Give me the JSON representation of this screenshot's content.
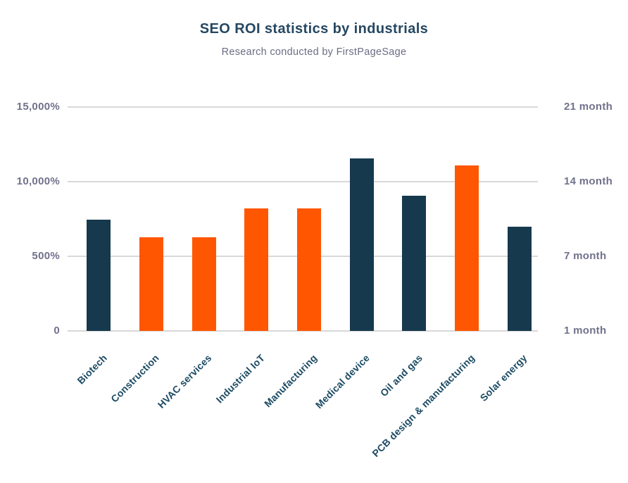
{
  "page": {
    "background": "#FFFFFF"
  },
  "chart": {
    "title": "SEO ROI statistics by industrials",
    "subtitle": "Research conducted by FirstPageSage"
  },
  "colors": {
    "title": "#254761",
    "subtitle": "#6C6C86",
    "tick_label": "#71718C",
    "x_label": "#1B4A63",
    "gridline": "#D8D8D8",
    "bar_navy": "#16394E",
    "bar_orange": "#FF5602",
    "background": "#FFFFFF"
  },
  "chart_data": {
    "type": "bar",
    "title": "SEO ROI statistics by industrials",
    "subtitle": "Research conducted by FirstPageSage",
    "categories": [
      "Biotech",
      "Construction",
      "HVAC services",
      "Industrial IoT",
      "Manufacturing",
      "Medical device",
      "Oil and gas",
      "PCB design & manufacturing",
      "Solar energy"
    ],
    "series": [
      {
        "name": "SEO ROI",
        "values_axis_units": [
          1.49,
          1.25,
          1.25,
          1.64,
          1.64,
          2.31,
          1.81,
          2.22,
          1.4
        ],
        "bar_colors": [
          "navy",
          "orange",
          "orange",
          "orange",
          "orange",
          "navy",
          "navy",
          "orange",
          "navy"
        ]
      }
    ],
    "left_axis": {
      "ticks_bottom_to_top": [
        "0",
        "500%",
        "10,000%",
        "15,000%"
      ],
      "range_units": [
        0,
        3
      ],
      "units_per_gridline": 1
    },
    "right_axis": {
      "ticks_bottom_to_top": [
        "1 month",
        "7 month",
        "14 month",
        "21 month"
      ]
    },
    "grid": true,
    "legend": false
  }
}
